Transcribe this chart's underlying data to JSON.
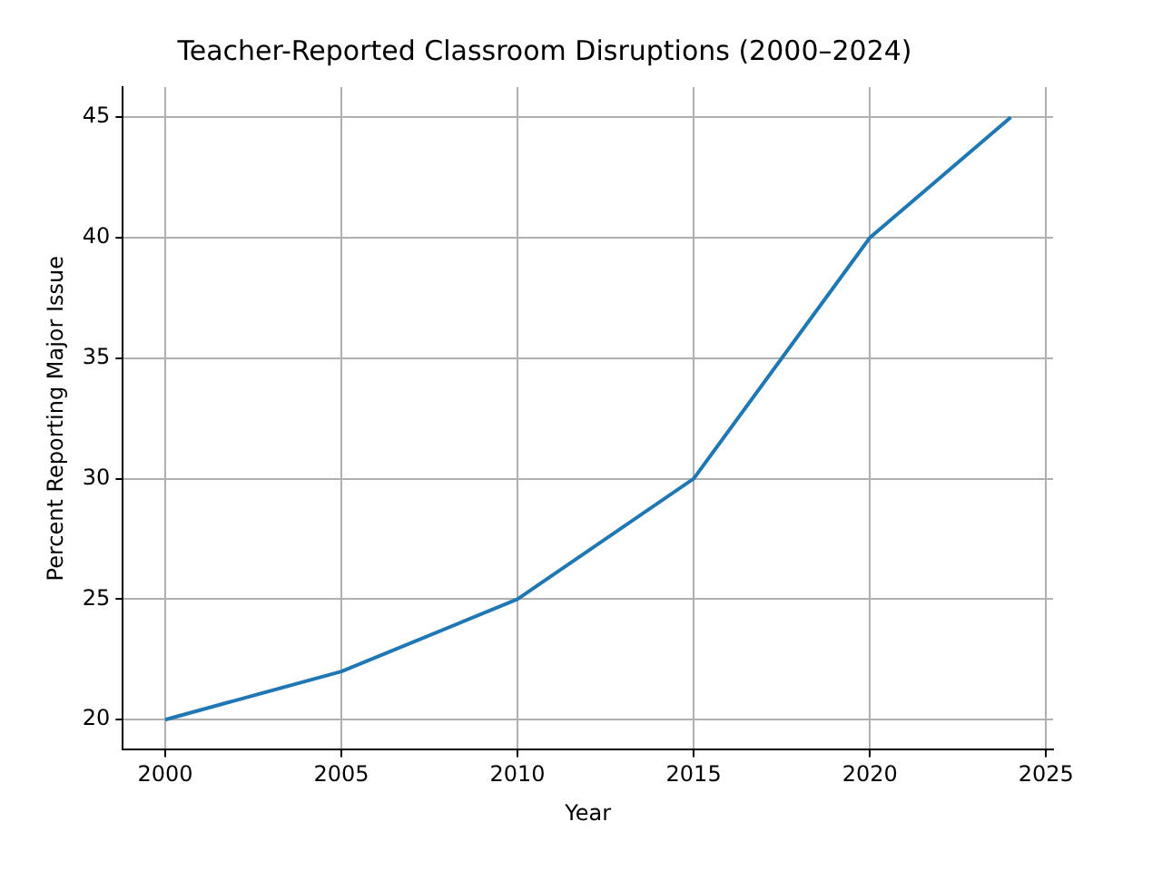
{
  "chart_data": {
    "type": "line",
    "title": "Teacher-Reported Classroom Disruptions (2000–2024)",
    "xlabel": "Year",
    "ylabel": "Percent Reporting Major Issue",
    "x": [
      2000,
      2005,
      2010,
      2015,
      2020,
      2024
    ],
    "series": [
      {
        "color": "#1f77b4",
        "values": [
          20,
          22,
          25,
          30,
          40,
          45
        ]
      }
    ],
    "xlim": [
      1998.8,
      2025.2
    ],
    "xticks": [
      2000,
      2005,
      2010,
      2015,
      2020,
      2025
    ],
    "ylim": [
      18.75,
      46.25
    ],
    "yticks": [
      20,
      25,
      30,
      35,
      40,
      45
    ],
    "grid": true,
    "legend": false,
    "marker": "none",
    "line_style": "solid"
  }
}
